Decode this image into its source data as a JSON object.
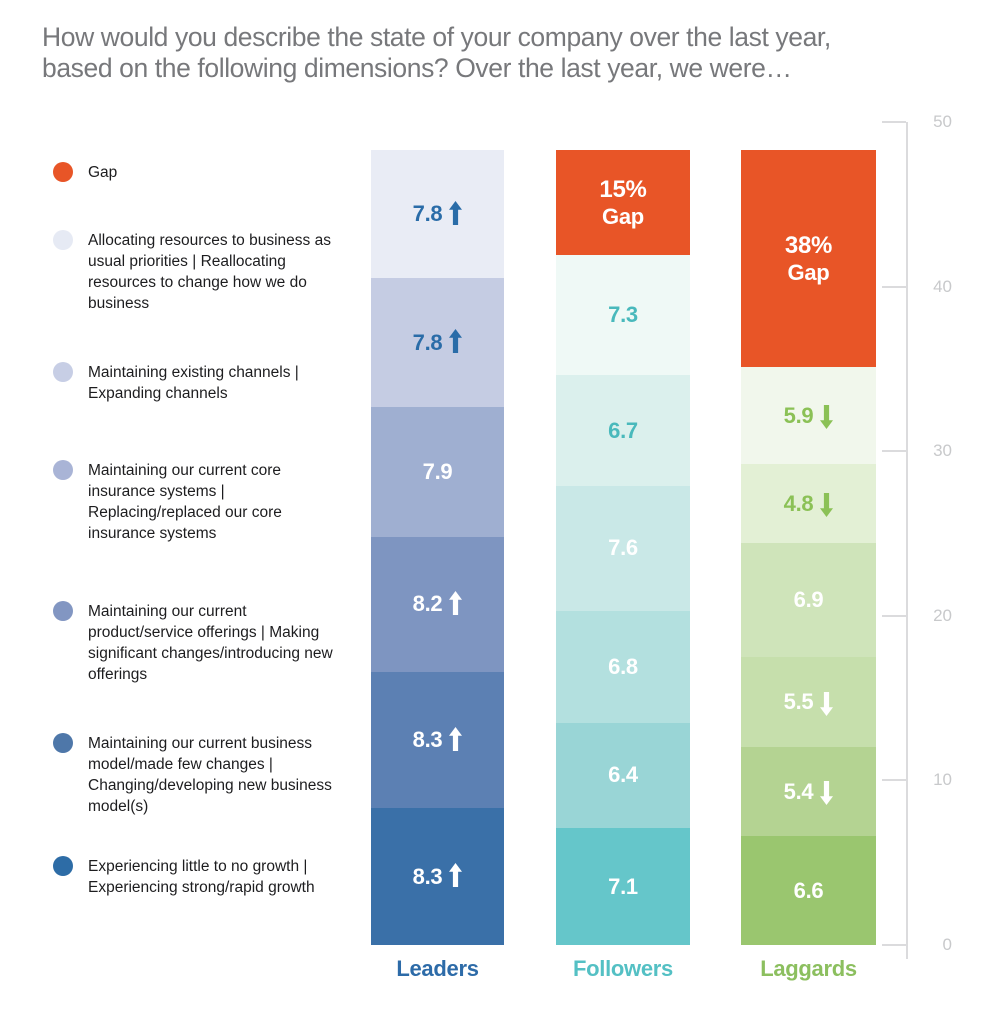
{
  "title": {
    "line1": "How would you describe the state of your company over the last year,",
    "line2": "based on the following dimensions? Over the last year, we were…"
  },
  "legend": {
    "items": [
      {
        "label": "Gap",
        "color": "#E85527"
      },
      {
        "label": "Allocating resources to business as usual priorities | Reallocating resources to change how we do business",
        "color": "#E6EAF4"
      },
      {
        "label": "Maintaining existing channels | Expanding channels",
        "color": "#C7CEE5"
      },
      {
        "label": "Maintaining our current core insurance systems | Replacing/replaced our core insurance systems",
        "color": "#A9B4D6"
      },
      {
        "label": "Maintaining our current product/service offerings | Making significant changes/introducing new offerings",
        "color": "#8296C2"
      },
      {
        "label": "Maintaining our current business model/made few changes | Changing/developing new business model(s)",
        "color": "#4E77A9"
      },
      {
        "label": "Experiencing little to no growth | Experiencing strong/rapid growth",
        "color": "#2D6CA6"
      }
    ]
  },
  "chart_data": {
    "type": "bar",
    "stacked": true,
    "ylim": [
      0,
      50
    ],
    "grid": false,
    "axis_ticks": [
      50,
      40,
      30,
      20,
      10,
      0
    ],
    "legend_position": "left",
    "columns": [
      {
        "name": "Leaders",
        "label_color": "#2D6BA8",
        "gap": null,
        "segments": [
          {
            "value": 7.8,
            "display": "7.8",
            "arrow": "up",
            "bg": "#E9ECF5",
            "fg": "#2A6CA8"
          },
          {
            "value": 7.8,
            "display": "7.8",
            "arrow": "up",
            "bg": "#C5CCE3",
            "fg": "#2A6CA8"
          },
          {
            "value": 7.9,
            "display": "7.9",
            "arrow": null,
            "bg": "#9FAFD1",
            "fg": "#FFFFFF"
          },
          {
            "value": 8.2,
            "display": "8.2",
            "arrow": "up",
            "bg": "#7E95C1",
            "fg": "#FFFFFF"
          },
          {
            "value": 8.3,
            "display": "8.3",
            "arrow": "up",
            "bg": "#5C80B3",
            "fg": "#FFFFFF"
          },
          {
            "value": 8.3,
            "display": "8.3",
            "arrow": "up",
            "bg": "#3A70A8",
            "fg": "#FFFFFF"
          }
        ]
      },
      {
        "name": "Followers",
        "label_color": "#54C0C4",
        "gap": {
          "label": "15%",
          "sublabel": "Gap",
          "color": "#E85527",
          "text_color": "#FFFFFF"
        },
        "segments": [
          {
            "value": 7.3,
            "display": "7.3",
            "arrow": null,
            "bg": "#EFF9F6",
            "fg": "#49B9BC"
          },
          {
            "value": 6.7,
            "display": "6.7",
            "arrow": null,
            "bg": "#DBF0ED",
            "fg": "#49B9BC"
          },
          {
            "value": 7.6,
            "display": "7.6",
            "arrow": null,
            "bg": "#C9E8E7",
            "fg": "#FFFFFF"
          },
          {
            "value": 6.8,
            "display": "6.8",
            "arrow": null,
            "bg": "#B3E0DF",
            "fg": "#FFFFFF"
          },
          {
            "value": 6.4,
            "display": "6.4",
            "arrow": null,
            "bg": "#99D5D6",
            "fg": "#FFFFFF"
          },
          {
            "value": 7.1,
            "display": "7.1",
            "arrow": null,
            "bg": "#65C6CA",
            "fg": "#FFFFFF"
          }
        ]
      },
      {
        "name": "Laggards",
        "label_color": "#8CBF5F",
        "gap": {
          "label": "38%",
          "sublabel": "Gap",
          "color": "#E85527",
          "text_color": "#FFFFFF"
        },
        "segments": [
          {
            "value": 5.9,
            "display": "5.9",
            "arrow": "down",
            "bg": "#F1F7EC",
            "fg": "#8BC156"
          },
          {
            "value": 4.8,
            "display": "4.8",
            "arrow": "down",
            "bg": "#E3F0D5",
            "fg": "#8BC156"
          },
          {
            "value": 6.9,
            "display": "6.9",
            "arrow": null,
            "bg": "#CFE4BA",
            "fg": "#FFFFFF"
          },
          {
            "value": 5.5,
            "display": "5.5",
            "arrow": "down",
            "bg": "#C6DFAC",
            "fg": "#FFFFFF"
          },
          {
            "value": 5.4,
            "display": "5.4",
            "arrow": "down",
            "bg": "#B4D392",
            "fg": "#FFFFFF"
          },
          {
            "value": 6.6,
            "display": "6.6",
            "arrow": null,
            "bg": "#9AC66F",
            "fg": "#FFFFFF"
          }
        ]
      }
    ]
  }
}
